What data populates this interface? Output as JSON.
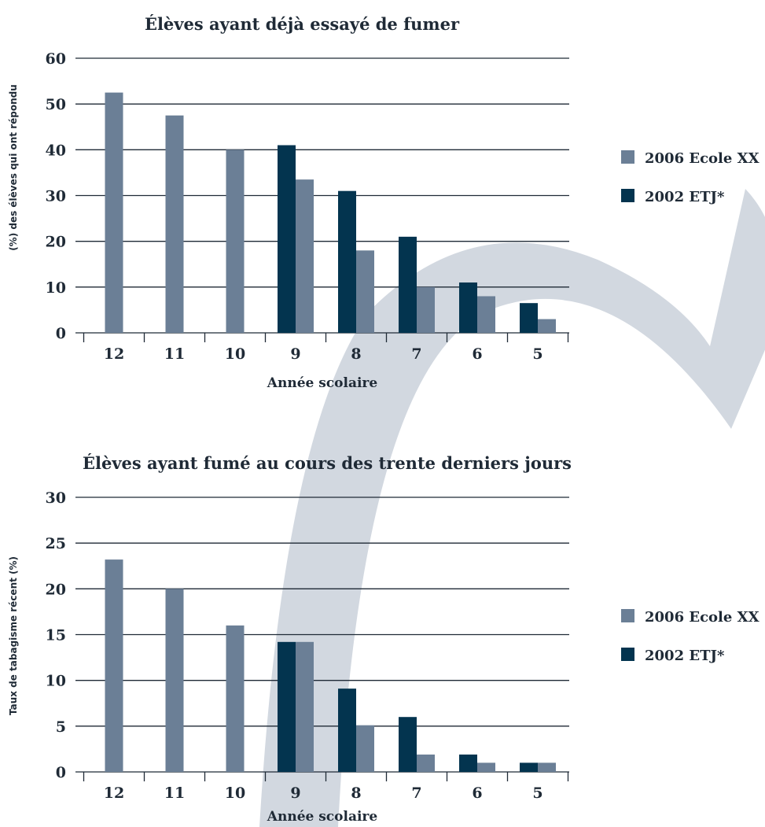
{
  "colors": {
    "series_2006": "#6b7f96",
    "series_2002": "#03344f",
    "gridline": "#1f2a36",
    "text": "#1f2a36",
    "watermark": "#d2d8e0"
  },
  "watermark": {
    "icon": "checkmark-swoosh"
  },
  "chart_data": [
    {
      "type": "bar",
      "title": "Élèves ayant déjà essayé de fumer",
      "xlabel": "Année scolaire",
      "ylabel": "(%) des élèves qui ont répondu",
      "categories": [
        "12",
        "11",
        "10",
        "9",
        "8",
        "7",
        "6",
        "5"
      ],
      "ylim": [
        0,
        60
      ],
      "yticks": [
        0,
        10,
        20,
        30,
        40,
        50,
        60
      ],
      "grid": true,
      "legend_position": "right",
      "series": [
        {
          "name": "2002 ETJ*",
          "values": [
            null,
            null,
            null,
            41,
            31,
            21,
            11,
            6.5
          ]
        },
        {
          "name": "2006 Ecole XX",
          "values": [
            52.5,
            47.5,
            40,
            33.5,
            18,
            10,
            8,
            3
          ]
        }
      ]
    },
    {
      "type": "bar",
      "title": "Élèves ayant fumé au cours des trente derniers jours",
      "xlabel": "Année scolaire",
      "ylabel": "Taux de tabagisme récent (%)",
      "categories": [
        "12",
        "11",
        "10",
        "9",
        "8",
        "7",
        "6",
        "5"
      ],
      "ylim": [
        0,
        30
      ],
      "yticks": [
        0,
        5,
        10,
        15,
        20,
        25,
        30
      ],
      "grid": true,
      "legend_position": "right",
      "series": [
        {
          "name": "2002 ETJ*",
          "values": [
            null,
            null,
            null,
            14.2,
            9.1,
            6,
            1.9,
            1
          ]
        },
        {
          "name": "2006 Ecole XX",
          "values": [
            23.2,
            20,
            16,
            14.2,
            5.1,
            1.9,
            1,
            1
          ]
        }
      ]
    }
  ]
}
